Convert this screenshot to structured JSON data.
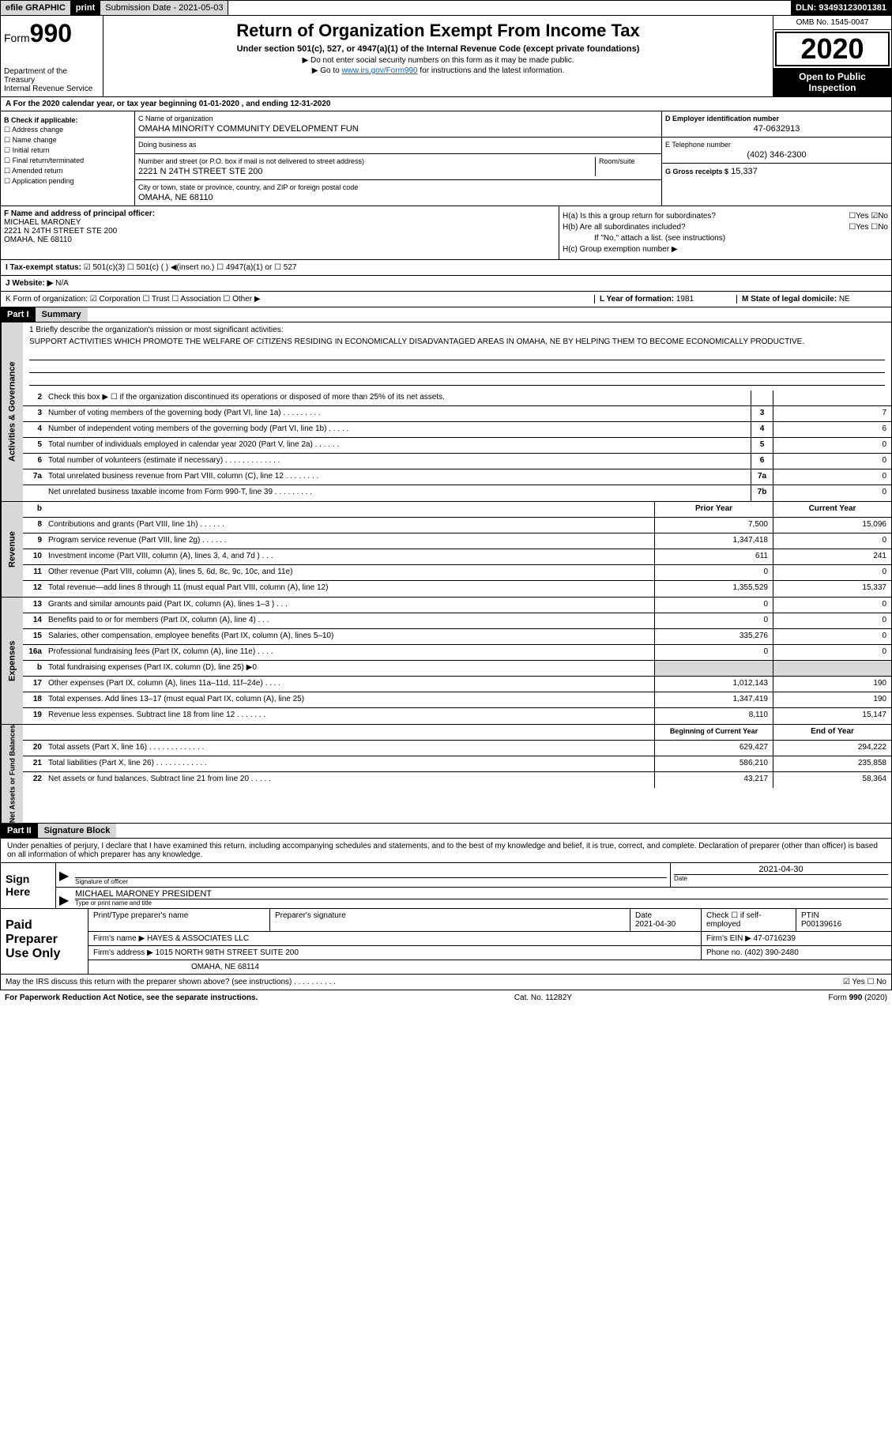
{
  "topbar": {
    "efile": "efile GRAPHIC",
    "print": "print",
    "subdate_label": "Submission Date - 2021-05-03",
    "dln": "DLN: 93493123001381"
  },
  "header": {
    "form_label": "Form",
    "form_num": "990",
    "dept": "Department of the Treasury\nInternal Revenue Service",
    "title": "Return of Organization Exempt From Income Tax",
    "subtitle": "Under section 501(c), 527, or 4947(a)(1) of the Internal Revenue Code (except private foundations)",
    "note1": "▶ Do not enter social security numbers on this form as it may be made public.",
    "note2_pre": "▶ Go to ",
    "note2_link": "www.irs.gov/Form990",
    "note2_post": " for instructions and the latest information.",
    "omb": "OMB No. 1545-0047",
    "year": "2020",
    "inspect": "Open to Public Inspection"
  },
  "line_a": "A For the 2020 calendar year, or tax year beginning 01-01-2020    , and ending 12-31-2020",
  "box_b": {
    "header": "B Check if applicable:",
    "items": [
      "☐ Address change",
      "☐ Name change",
      "☐ Initial return",
      "☐ Final return/terminated",
      "☐ Amended return",
      "☐ Application pending"
    ]
  },
  "box_c": {
    "name_lbl": "C Name of organization",
    "name": "OMAHA MINORITY COMMUNITY DEVELOPMENT FUN",
    "dba_lbl": "Doing business as",
    "dba": "",
    "addr_lbl": "Number and street (or P.O. box if mail is not delivered to street address)",
    "room_lbl": "Room/suite",
    "addr": "2221 N 24TH STREET STE 200",
    "city_lbl": "City or town, state or province, country, and ZIP or foreign postal code",
    "city": "OMAHA, NE  68110"
  },
  "box_d": {
    "lbl": "D Employer identification number",
    "val": "47-0632913"
  },
  "box_e": {
    "lbl": "E Telephone number",
    "val": "(402) 346-2300"
  },
  "box_g": {
    "lbl": "G Gross receipts $",
    "val": "15,337"
  },
  "box_f": {
    "lbl": "F  Name and address of principal officer:",
    "name": "MICHAEL MARONEY",
    "addr1": "2221 N 24TH STREET STE 200",
    "addr2": "OMAHA, NE  68110"
  },
  "box_h": {
    "a": "H(a)  Is this a group return for subordinates?",
    "a_ans": "☐Yes ☑No",
    "b": "H(b)  Are all subordinates included?",
    "b_ans": "☐Yes ☐No",
    "b_note": "If \"No,\" attach a list. (see instructions)",
    "c": "H(c)  Group exemption number ▶"
  },
  "tax_exempt": {
    "lbl": "I    Tax-exempt status:",
    "opts": "☑ 501(c)(3)   ☐ 501(c) (  ) ◀(insert no.)   ☐ 4947(a)(1) or  ☐ 527"
  },
  "website": {
    "lbl": "J   Website: ▶",
    "val": "N/A"
  },
  "line_k": "K Form of organization:  ☑ Corporation  ☐ Trust  ☐ Association  ☐ Other ▶",
  "line_l": {
    "lbl": "L Year of formation:",
    "val": "1981"
  },
  "line_m": {
    "lbl": "M State of legal domicile:",
    "val": "NE"
  },
  "part1": {
    "hdr": "Part I",
    "title": "Summary"
  },
  "mission": {
    "q": "1  Briefly describe the organization's mission or most significant activities:",
    "text": "SUPPORT ACTIVITIES WHICH PROMOTE THE WELFARE OF CITIZENS RESIDING IN ECONOMICALLY DISADVANTAGED AREAS IN OMAHA, NE BY HELPING THEM TO BECOME ECONOMICALLY PRODUCTIVE."
  },
  "sections": {
    "gov": "Activities & Governance",
    "rev": "Revenue",
    "exp": "Expenses",
    "net": "Net Assets or Fund Balances"
  },
  "gov_lines": [
    {
      "n": "2",
      "t": "Check this box ▶ ☐  if the organization discontinued its operations or disposed of more than 25% of its net assets.",
      "box": "",
      "v": ""
    },
    {
      "n": "3",
      "t": "Number of voting members of the governing body (Part VI, line 1a)  .   .   .   .   .   .   .   .   .",
      "box": "3",
      "v": "7"
    },
    {
      "n": "4",
      "t": "Number of independent voting members of the governing body (Part VI, line 1b)  .   .   .   .   .",
      "box": "4",
      "v": "6"
    },
    {
      "n": "5",
      "t": "Total number of individuals employed in calendar year 2020 (Part V, line 2a)  .   .   .   .   .   .",
      "box": "5",
      "v": "0"
    },
    {
      "n": "6",
      "t": "Total number of volunteers (estimate if necessary)   .   .   .   .   .   .   .   .   .   .   .   .   .",
      "box": "6",
      "v": "0"
    },
    {
      "n": "7a",
      "t": "Total unrelated business revenue from Part VIII, column (C), line 12  .   .   .   .   .   .   .   .",
      "box": "7a",
      "v": "0"
    },
    {
      "n": "",
      "t": "Net unrelated business taxable income from Form 990-T, line 39   .   .   .   .   .   .   .   .   .",
      "box": "7b",
      "v": "0"
    }
  ],
  "col_hdrs": {
    "b": "b",
    "prior": "Prior Year",
    "current": "Current Year"
  },
  "rev_lines": [
    {
      "n": "8",
      "t": "Contributions and grants (Part VIII, line 1h)   .   .   .   .   .   .",
      "p": "7,500",
      "c": "15,096"
    },
    {
      "n": "9",
      "t": "Program service revenue (Part VIII, line 2g)   .   .   .   .   .   .",
      "p": "1,347,418",
      "c": "0"
    },
    {
      "n": "10",
      "t": "Investment income (Part VIII, column (A), lines 3, 4, and 7d )   .   .   .",
      "p": "611",
      "c": "241"
    },
    {
      "n": "11",
      "t": "Other revenue (Part VIII, column (A), lines 5, 6d, 8c, 9c, 10c, and 11e)",
      "p": "0",
      "c": "0"
    },
    {
      "n": "12",
      "t": "Total revenue—add lines 8 through 11 (must equal Part VIII, column (A), line 12)",
      "p": "1,355,529",
      "c": "15,337"
    }
  ],
  "exp_lines": [
    {
      "n": "13",
      "t": "Grants and similar amounts paid (Part IX, column (A), lines 1–3 )  .   .   .",
      "p": "0",
      "c": "0"
    },
    {
      "n": "14",
      "t": "Benefits paid to or for members (Part IX, column (A), line 4)   .   .   .",
      "p": "0",
      "c": "0"
    },
    {
      "n": "15",
      "t": "Salaries, other compensation, employee benefits (Part IX, column (A), lines 5–10)",
      "p": "335,276",
      "c": "0"
    },
    {
      "n": "16a",
      "t": "Professional fundraising fees (Part IX, column (A), line 11e)  .   .   .   .",
      "p": "0",
      "c": "0"
    },
    {
      "n": "b",
      "t": "Total fundraising expenses (Part IX, column (D), line 25) ▶0",
      "p": "",
      "c": "",
      "shade": true
    },
    {
      "n": "17",
      "t": "Other expenses (Part IX, column (A), lines 11a–11d, 11f–24e)  .   .   .   .",
      "p": "1,012,143",
      "c": "190"
    },
    {
      "n": "18",
      "t": "Total expenses. Add lines 13–17 (must equal Part IX, column (A), line 25)",
      "p": "1,347,419",
      "c": "190"
    },
    {
      "n": "19",
      "t": "Revenue less expenses. Subtract line 18 from line 12  .   .   .   .   .   .   .",
      "p": "8,110",
      "c": "15,147"
    }
  ],
  "net_hdrs": {
    "begin": "Beginning of Current Year",
    "end": "End of Year"
  },
  "net_lines": [
    {
      "n": "20",
      "t": "Total assets (Part X, line 16)  .   .   .   .   .   .   .   .   .   .   .   .   .",
      "p": "629,427",
      "c": "294,222"
    },
    {
      "n": "21",
      "t": "Total liabilities (Part X, line 26)  .   .   .   .   .   .   .   .   .   .   .   .",
      "p": "586,210",
      "c": "235,858"
    },
    {
      "n": "22",
      "t": "Net assets or fund balances. Subtract line 21 from line 20  .   .   .   .   .",
      "p": "43,217",
      "c": "58,364"
    }
  ],
  "part2": {
    "hdr": "Part II",
    "title": "Signature Block"
  },
  "declare": "Under penalties of perjury, I declare that I have examined this return, including accompanying schedules and statements, and to the best of my knowledge and belief, it is true, correct, and complete. Declaration of preparer (other than officer) is based on all information of which preparer has any knowledge.",
  "sign": {
    "here": "Sign Here",
    "sig_lbl": "Signature of officer",
    "date_lbl": "Date",
    "date": "2021-04-30",
    "name": "MICHAEL MARONEY  PRESIDENT",
    "name_lbl": "Type or print name and title"
  },
  "prep": {
    "title": "Paid Preparer Use Only",
    "h1": "Print/Type preparer's name",
    "h2": "Preparer's signature",
    "h3": "Date",
    "date": "2021-04-30",
    "h4": "Check ☐ if self-employed",
    "h5": "PTIN",
    "ptin": "P00139616",
    "firm_lbl": "Firm's name    ▶",
    "firm": "HAYES & ASSOCIATES LLC",
    "ein_lbl": "Firm's EIN ▶",
    "ein": "47-0716239",
    "addr_lbl": "Firm's address ▶",
    "addr1": "1015 NORTH 98TH STREET SUITE 200",
    "addr2": "OMAHA, NE  68114",
    "phone_lbl": "Phone no.",
    "phone": "(402) 390-2480"
  },
  "irs_discuss": "May the IRS discuss this return with the preparer shown above? (see instructions)   .   .   .   .   .   .   .   .   .   .",
  "irs_ans": "☑ Yes ☐ No",
  "footer": {
    "left": "For Paperwork Reduction Act Notice, see the separate instructions.",
    "mid": "Cat. No. 11282Y",
    "right": "Form 990 (2020)"
  }
}
